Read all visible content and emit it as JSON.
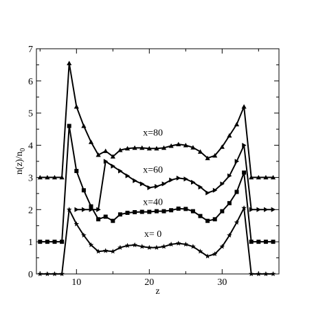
{
  "chart_data": {
    "type": "line",
    "title": "",
    "xlabel": "z",
    "ylabel": "n(z)/n",
    "ylabel_subscript": "0",
    "xlim": [
      4.5,
      37.8
    ],
    "ylim": [
      0,
      7
    ],
    "xticks": [
      10,
      20,
      30
    ],
    "yticks": [
      0,
      1,
      2,
      3,
      4,
      5,
      6,
      7
    ],
    "grid": false,
    "legend": "none",
    "annotations": [
      {
        "text": "x=80",
        "x": 20.5,
        "y": 4.3
      },
      {
        "text": "x=60",
        "x": 20.5,
        "y": 3.15
      },
      {
        "text": "x=40",
        "x": 20.5,
        "y": 2.15
      },
      {
        "text": "x= 0",
        "x": 20.5,
        "y": 1.15
      }
    ],
    "series": [
      {
        "marker": "triangle",
        "x": [
          5,
          6,
          7,
          8,
          9,
          10,
          11,
          12,
          13,
          14,
          15,
          16,
          17,
          18,
          19,
          20,
          21,
          22,
          23,
          24,
          25,
          26,
          27,
          28,
          29,
          30,
          31,
          32,
          33,
          34,
          35,
          36,
          37
        ],
        "y": [
          3,
          3,
          3,
          3,
          6.55,
          5.2,
          4.6,
          4.1,
          3.7,
          3.82,
          3.65,
          3.85,
          3.9,
          3.92,
          3.92,
          3.9,
          3.9,
          3.92,
          3.98,
          4.03,
          4.0,
          3.93,
          3.8,
          3.6,
          3.68,
          3.95,
          4.3,
          4.65,
          5.2,
          3,
          3,
          3,
          3
        ]
      },
      {
        "marker": "right-triangle",
        "x": [
          10,
          11,
          12,
          13,
          14,
          15,
          16,
          17,
          18,
          19,
          20,
          21,
          22,
          23,
          24,
          25,
          26,
          27,
          28,
          29,
          30,
          31,
          32,
          33,
          34,
          35,
          36,
          37
        ],
        "y": [
          2,
          2,
          2,
          2,
          3.5,
          3.35,
          3.2,
          3.05,
          2.9,
          2.8,
          2.68,
          2.72,
          2.8,
          2.92,
          2.98,
          2.95,
          2.85,
          2.7,
          2.52,
          2.6,
          2.8,
          3.05,
          3.5,
          4.0,
          2,
          2,
          2,
          2
        ]
      },
      {
        "marker": "square",
        "x": [
          5,
          6,
          7,
          8,
          9,
          10,
          11,
          12,
          13,
          14,
          15,
          16,
          17,
          18,
          19,
          20,
          21,
          22,
          23,
          24,
          25,
          26,
          27,
          28,
          29,
          30,
          31,
          32,
          33,
          34,
          35,
          36,
          37
        ],
        "y": [
          1,
          1,
          1,
          1,
          4.6,
          3.2,
          2.6,
          2.1,
          1.7,
          1.78,
          1.65,
          1.85,
          1.9,
          1.92,
          1.93,
          1.93,
          1.95,
          1.95,
          1.98,
          2.03,
          2.02,
          1.95,
          1.8,
          1.65,
          1.7,
          1.95,
          2.2,
          2.55,
          3.15,
          1,
          1,
          1,
          1
        ]
      },
      {
        "marker": "star",
        "x": [
          5,
          6,
          7,
          8,
          9,
          10,
          11,
          12,
          13,
          14,
          15,
          16,
          17,
          18,
          19,
          20,
          21,
          22,
          23,
          24,
          25,
          26,
          27,
          28,
          29,
          30,
          31,
          32,
          33,
          34,
          35,
          36,
          37
        ],
        "y": [
          0,
          0,
          0,
          0,
          2.0,
          1.55,
          1.2,
          0.9,
          0.7,
          0.72,
          0.7,
          0.82,
          0.88,
          0.9,
          0.85,
          0.82,
          0.82,
          0.85,
          0.92,
          0.95,
          0.92,
          0.85,
          0.7,
          0.55,
          0.62,
          0.85,
          1.2,
          1.6,
          2.05,
          0,
          0,
          0,
          0
        ]
      }
    ]
  }
}
